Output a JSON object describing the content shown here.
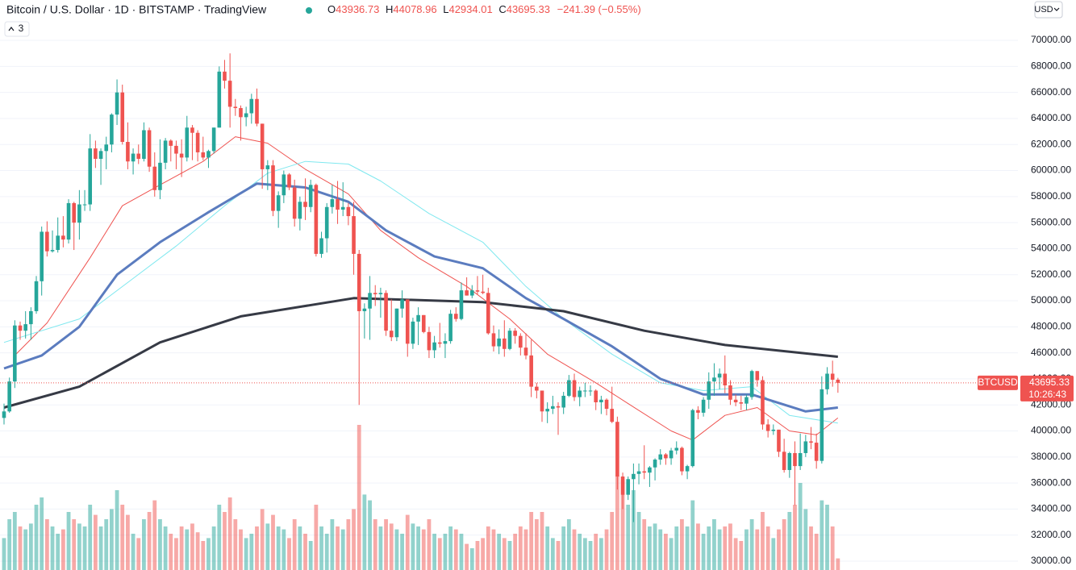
{
  "chart_data": {
    "type": "candlestick",
    "title": "Bitcoin / U.S. Dollar · 1D · BITSTAMP · TradingView",
    "legend_keys": [
      "O",
      "H",
      "L",
      "C"
    ],
    "change_label": "−241.39 (−0.55%)",
    "indicator_count": "3",
    "currency": "USD",
    "symbol": "BTCUSD",
    "countdown": "10:26:43",
    "up_color": "#26a69a",
    "down_color": "#ef5350",
    "grid": true,
    "ylim": [
      29320,
      73100
    ],
    "yticks": [
      {
        "value": 30000,
        "label": "30000.00"
      },
      {
        "value": 32000,
        "label": "32000.00"
      },
      {
        "value": 34000,
        "label": "34000.00"
      },
      {
        "value": 36000,
        "label": "36000.00"
      },
      {
        "value": 38000,
        "label": "38000.00"
      },
      {
        "value": 40000,
        "label": "40000.00"
      },
      {
        "value": 42000,
        "label": "42000.00"
      },
      {
        "value": 44000,
        "label": "44000.00"
      },
      {
        "value": 46000,
        "label": "46000.00"
      },
      {
        "value": 48000,
        "label": "48000.00"
      },
      {
        "value": 50000,
        "label": "50000.00"
      },
      {
        "value": 52000,
        "label": "52000.00"
      },
      {
        "value": 54000,
        "label": "54000.00"
      },
      {
        "value": 56000,
        "label": "56000.00"
      },
      {
        "value": 58000,
        "label": "58000.00"
      },
      {
        "value": 60000,
        "label": "60000.00"
      },
      {
        "value": 62000,
        "label": "62000.00"
      },
      {
        "value": 64000,
        "label": "64000.00"
      },
      {
        "value": 66000,
        "label": "66000.00"
      },
      {
        "value": 68000,
        "label": "68000.00"
      },
      {
        "value": 70000,
        "label": "70000.00"
      }
    ],
    "ohlc": [
      [
        41000,
        42100,
        40500,
        41500
      ],
      [
        41500,
        44100,
        41400,
        43800
      ],
      [
        43800,
        48500,
        43300,
        48100
      ],
      [
        48100,
        48400,
        47000,
        47700
      ],
      [
        47700,
        49200,
        47100,
        48200
      ],
      [
        48200,
        49500,
        47000,
        49200
      ],
      [
        49200,
        51900,
        49000,
        51500
      ],
      [
        51500,
        55700,
        50400,
        55300
      ],
      [
        55300,
        56100,
        53400,
        53800
      ],
      [
        53800,
        55400,
        53700,
        53900
      ],
      [
        53900,
        56400,
        53700,
        55000
      ],
      [
        55000,
        56500,
        54100,
        54700
      ],
      [
        54700,
        57800,
        54400,
        57500
      ],
      [
        57500,
        57600,
        53900,
        56000
      ],
      [
        56000,
        58500,
        54700,
        57400
      ],
      [
        57400,
        58500,
        56900,
        57400
      ],
      [
        57400,
        62800,
        56900,
        61700
      ],
      [
        61700,
        62300,
        60200,
        60900
      ],
      [
        60900,
        61700,
        58900,
        61500
      ],
      [
        61500,
        62600,
        60100,
        62000
      ],
      [
        62000,
        64400,
        61400,
        64300
      ],
      [
        64300,
        67000,
        63500,
        66000
      ],
      [
        66000,
        66600,
        62000,
        62200
      ],
      [
        62200,
        63700,
        60100,
        60700
      ],
      [
        60700,
        61700,
        59700,
        61300
      ],
      [
        61300,
        62000,
        60500,
        60900
      ],
      [
        60900,
        63700,
        60700,
        63100
      ],
      [
        63100,
        63300,
        59900,
        60300
      ],
      [
        60300,
        61400,
        58000,
        58500
      ],
      [
        58500,
        62400,
        57800,
        60600
      ],
      [
        60600,
        62500,
        60100,
        62300
      ],
      [
        62300,
        62400,
        60700,
        61900
      ],
      [
        61900,
        62300,
        60100,
        61300
      ],
      [
        61300,
        62400,
        59500,
        61000
      ],
      [
        61000,
        64200,
        60700,
        63300
      ],
      [
        63300,
        63500,
        60800,
        62900
      ],
      [
        62900,
        63100,
        60700,
        61400
      ],
      [
        61400,
        62600,
        60800,
        61000
      ],
      [
        61000,
        61600,
        60200,
        61500
      ],
      [
        61500,
        63300,
        61300,
        63300
      ],
      [
        63300,
        68000,
        63300,
        67600
      ],
      [
        67600,
        68500,
        66300,
        66900
      ],
      [
        66900,
        69000,
        63300,
        64900
      ],
      [
        64900,
        65500,
        64200,
        64800
      ],
      [
        64800,
        65000,
        62300,
        64100
      ],
      [
        64100,
        64900,
        63400,
        64400
      ],
      [
        64400,
        65900,
        63600,
        65500
      ],
      [
        65500,
        66300,
        63400,
        63600
      ],
      [
        63600,
        63600,
        58600,
        60100
      ],
      [
        60100,
        60800,
        58500,
        60400
      ],
      [
        60400,
        60800,
        56500,
        56900
      ],
      [
        56900,
        58400,
        55600,
        58100
      ],
      [
        58100,
        60000,
        57500,
        59700
      ],
      [
        59700,
        59800,
        58500,
        58700
      ],
      [
        58700,
        59300,
        55700,
        56300
      ],
      [
        56300,
        58000,
        55400,
        57600
      ],
      [
        57600,
        59400,
        56200,
        57200
      ],
      [
        57200,
        59300,
        56800,
        58900
      ],
      [
        58900,
        59000,
        53400,
        53600
      ],
      [
        53600,
        55300,
        53300,
        54800
      ],
      [
        54800,
        57500,
        53700,
        57200
      ],
      [
        57200,
        58900,
        56700,
        57800
      ],
      [
        57800,
        59200,
        55900,
        57000
      ],
      [
        57000,
        59100,
        56500,
        57200
      ],
      [
        57200,
        57500,
        55800,
        56500
      ],
      [
        56500,
        57600,
        52000,
        53600
      ],
      [
        53600,
        53900,
        42000,
        49200
      ],
      [
        49200,
        49800,
        47100,
        49400
      ],
      [
        49400,
        51900,
        47000,
        50600
      ],
      [
        50600,
        51200,
        49600,
        50500
      ],
      [
        50500,
        51000,
        48700,
        50600
      ],
      [
        50600,
        50800,
        47300,
        47700
      ],
      [
        47700,
        50100,
        46900,
        47200
      ],
      [
        47200,
        49400,
        46900,
        49400
      ],
      [
        49400,
        50800,
        48700,
        50100
      ],
      [
        50100,
        50100,
        45700,
        46700
      ],
      [
        46700,
        48700,
        46300,
        48400
      ],
      [
        48400,
        49500,
        46600,
        48900
      ],
      [
        48900,
        48900,
        47500,
        47600
      ],
      [
        47600,
        48000,
        45600,
        46200
      ],
      [
        46200,
        47300,
        45600,
        46800
      ],
      [
        46800,
        48300,
        46400,
        46700
      ],
      [
        46700,
        47500,
        45600,
        46900
      ],
      [
        46900,
        49300,
        46700,
        49000
      ],
      [
        49000,
        49500,
        48400,
        48600
      ],
      [
        48600,
        51400,
        48500,
        50800
      ],
      [
        50800,
        51800,
        50400,
        50400
      ],
      [
        50400,
        51200,
        50200,
        50800
      ],
      [
        50800,
        51900,
        50500,
        50700
      ],
      [
        50700,
        52000,
        50500,
        50600
      ],
      [
        50600,
        51000,
        47400,
        47500
      ],
      [
        47500,
        48100,
        46100,
        46500
      ],
      [
        46500,
        47800,
        45900,
        47100
      ],
      [
        47100,
        48500,
        45700,
        46300
      ],
      [
        46300,
        47900,
        46200,
        47700
      ],
      [
        47700,
        47900,
        46700,
        47300
      ],
      [
        47300,
        47500,
        45800,
        46400
      ],
      [
        46400,
        47500,
        45500,
        45800
      ],
      [
        45800,
        47000,
        42600,
        43400
      ],
      [
        43400,
        43700,
        42500,
        43100
      ],
      [
        43100,
        43100,
        40700,
        41500
      ],
      [
        41500,
        42200,
        40600,
        41700
      ],
      [
        41700,
        42700,
        41300,
        41900
      ],
      [
        41900,
        42200,
        39700,
        41800
      ],
      [
        41800,
        43000,
        41300,
        42700
      ],
      [
        42700,
        44300,
        42600,
        43900
      ],
      [
        43900,
        44400,
        42300,
        42600
      ],
      [
        42600,
        43400,
        41900,
        43100
      ],
      [
        43100,
        43700,
        42600,
        43100
      ],
      [
        43100,
        43500,
        42700,
        43100
      ],
      [
        43100,
        43200,
        41600,
        42200
      ],
      [
        42200,
        42700,
        41300,
        42400
      ],
      [
        42400,
        42500,
        41200,
        41700
      ],
      [
        41700,
        43400,
        40600,
        40700
      ],
      [
        40700,
        41100,
        35500,
        36500
      ],
      [
        36500,
        36800,
        34000,
        35100
      ],
      [
        35100,
        36500,
        34700,
        36300
      ],
      [
        36300,
        37500,
        33000,
        36700
      ],
      [
        36700,
        37500,
        35900,
        36900
      ],
      [
        36900,
        38900,
        36300,
        36800
      ],
      [
        36800,
        37300,
        35700,
        37200
      ],
      [
        37200,
        37900,
        36200,
        37800
      ],
      [
        37800,
        38600,
        37400,
        38200
      ],
      [
        38200,
        38300,
        37400,
        37900
      ],
      [
        37900,
        38700,
        37400,
        38500
      ],
      [
        38500,
        39200,
        38200,
        38700
      ],
      [
        38700,
        38800,
        36600,
        36900
      ],
      [
        36900,
        37400,
        36300,
        37300
      ],
      [
        37300,
        41700,
        37200,
        41600
      ],
      [
        41600,
        41900,
        40900,
        41400
      ],
      [
        41400,
        42600,
        41100,
        42400
      ],
      [
        42400,
        44500,
        41700,
        43800
      ],
      [
        43800,
        45200,
        42700,
        44100
      ],
      [
        44100,
        44800,
        43200,
        44400
      ],
      [
        44400,
        45800,
        42900,
        43500
      ],
      [
        43500,
        43900,
        42000,
        42400
      ],
      [
        42400,
        42800,
        41900,
        42200
      ],
      [
        42200,
        42700,
        41600,
        42100
      ],
      [
        42100,
        42800,
        41600,
        42600
      ],
      [
        42600,
        44700,
        42400,
        44600
      ],
      [
        44600,
        44600,
        43400,
        43900
      ],
      [
        43900,
        44200,
        40100,
        40500
      ],
      [
        40500,
        40900,
        39500,
        40000
      ],
      [
        40000,
        40500,
        39700,
        40100
      ],
      [
        40100,
        40100,
        38000,
        38400
      ],
      [
        38400,
        39400,
        36800,
        37000
      ],
      [
        37000,
        38400,
        36400,
        38300
      ],
      [
        38300,
        39200,
        34300,
        37300
      ],
      [
        37300,
        39800,
        37000,
        38300
      ],
      [
        38300,
        39700,
        38000,
        39200
      ],
      [
        39200,
        40300,
        38600,
        39100
      ],
      [
        39100,
        39800,
        37100,
        37700
      ],
      [
        37700,
        44200,
        37500,
        43200
      ],
      [
        43200,
        44900,
        42800,
        44400
      ],
      [
        44400,
        45400,
        43400,
        43936.73
      ],
      [
        43936.73,
        44078.96,
        42934.01,
        43695.33
      ]
    ],
    "volume": [
      22,
      35,
      40,
      30,
      28,
      32,
      45,
      50,
      35,
      30,
      25,
      28,
      40,
      35,
      32,
      30,
      45,
      38,
      30,
      35,
      42,
      55,
      45,
      38,
      25,
      22,
      35,
      40,
      48,
      35,
      30,
      25,
      22,
      30,
      28,
      32,
      26,
      20,
      22,
      30,
      45,
      40,
      50,
      35,
      28,
      22,
      25,
      30,
      42,
      32,
      38,
      30,
      28,
      22,
      35,
      30,
      25,
      20,
      45,
      30,
      25,
      35,
      30,
      28,
      35,
      42,
      100,
      52,
      48,
      35,
      30,
      35,
      32,
      28,
      25,
      38,
      32,
      30,
      28,
      35,
      25,
      22,
      25,
      30,
      28,
      25,
      18,
      15,
      20,
      22,
      30,
      28,
      25,
      22,
      20,
      25,
      30,
      28,
      40,
      35,
      40,
      30,
      22,
      20,
      30,
      35,
      28,
      25,
      22,
      20,
      25,
      22,
      28,
      40,
      65,
      62,
      45,
      55,
      40,
      35,
      30,
      32,
      28,
      25,
      22,
      30,
      35,
      30,
      48,
      32,
      25,
      30,
      35,
      28,
      30,
      32,
      22,
      20,
      28,
      35,
      28,
      40,
      30,
      22,
      28,
      35,
      40,
      45,
      60,
      42,
      30,
      25,
      48,
      45,
      30,
      8
    ],
    "overlays": [
      {
        "color": "#ef5350",
        "width": 1,
        "x": [
          2,
          8,
          16,
          22,
          29,
          37,
          43,
          49,
          56,
          64,
          70,
          77,
          86,
          94,
          101,
          110,
          116,
          124,
          128,
          134,
          140,
          146,
          151,
          155
        ],
        "values": [
          45800,
          48300,
          53300,
          57300,
          58900,
          60700,
          62600,
          62100,
          60100,
          58200,
          55400,
          53300,
          51100,
          48600,
          45900,
          43700,
          42100,
          40000,
          39300,
          41200,
          41800,
          40000,
          39700,
          41000
        ]
      },
      {
        "color": "#7fe8ef",
        "width": 1,
        "x": [
          0,
          14,
          23,
          32,
          41,
          49,
          56,
          64,
          70,
          79,
          89,
          97,
          104,
          113,
          122,
          130,
          139,
          146,
          155
        ],
        "values": [
          46800,
          48600,
          51400,
          54200,
          57300,
          59800,
          60700,
          60500,
          59200,
          56700,
          54500,
          51100,
          48600,
          45900,
          43700,
          43100,
          43400,
          41200,
          40600
        ]
      },
      {
        "color": "#5b7cbf",
        "width": 3,
        "x": [
          0,
          7,
          14,
          21,
          29,
          38,
          47,
          56,
          64,
          71,
          80,
          89,
          97,
          104,
          113,
          122,
          130,
          139,
          149,
          155
        ],
        "values": [
          44800,
          45800,
          48000,
          52000,
          54500,
          56800,
          59000,
          58700,
          57600,
          55400,
          53400,
          52500,
          50200,
          48600,
          46500,
          44000,
          42800,
          42800,
          41500,
          41800
        ]
      },
      {
        "color": "#363a45",
        "width": 3,
        "x": [
          0,
          14,
          29,
          44,
          65,
          89,
          104,
          119,
          134,
          155
        ],
        "values": [
          41800,
          43400,
          46800,
          48800,
          50200,
          49900,
          49200,
          47700,
          46600,
          45700
        ]
      }
    ]
  }
}
